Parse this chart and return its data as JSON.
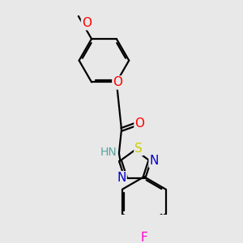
{
  "background_color": "#e8e8e8",
  "atom_colors": {
    "C": "#000000",
    "H": "#5ba3a0",
    "N": "#0000cc",
    "O": "#ff0000",
    "S": "#cccc00",
    "F": "#ff00cc"
  },
  "bond_color": "#000000",
  "bond_width": 1.6,
  "font_size": 10,
  "fig_size": [
    3.0,
    3.0
  ],
  "dpi": 100
}
